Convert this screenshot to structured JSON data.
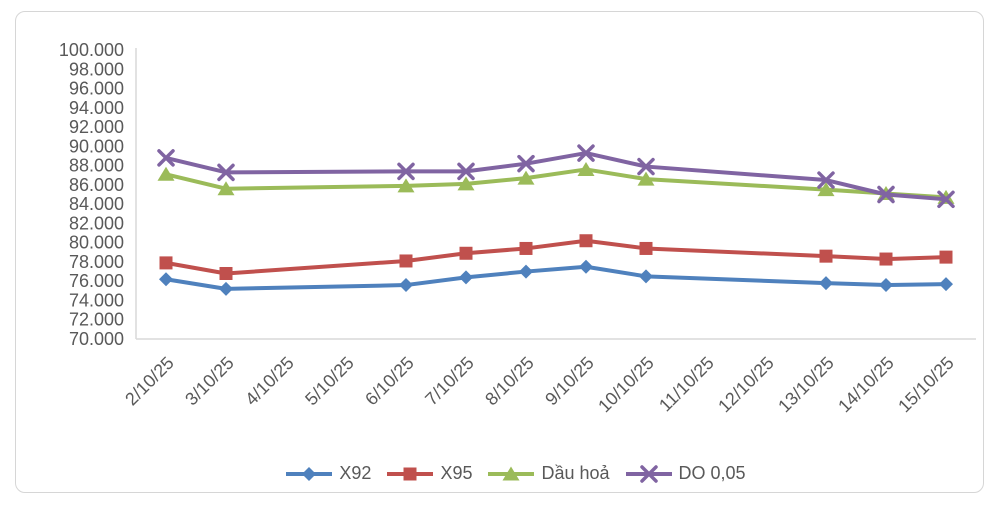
{
  "chart_data": {
    "type": "line",
    "title": "",
    "xlabel": "",
    "ylabel": "",
    "grid": false,
    "legend_position": "bottom",
    "axis_color": "#D9D9D9",
    "text_color": "#595959",
    "ylim": [
      70000,
      100000
    ],
    "ytick_step": 2000,
    "ytick_labels": [
      "100.000",
      "98.000",
      "96.000",
      "94.000",
      "92.000",
      "90.000",
      "88.000",
      "86.000",
      "84.000",
      "82.000",
      "80.000",
      "78.000",
      "76.000",
      "74.000",
      "72.000",
      "70.000"
    ],
    "categories": [
      "2/10/25",
      "3/10/25",
      "4/10/25",
      "5/10/25",
      "6/10/25",
      "7/10/25",
      "8/10/25",
      "9/10/25",
      "10/10/25",
      "11/10/25",
      "12/10/25",
      "13/10/25",
      "14/10/25",
      "15/10/25"
    ],
    "series": [
      {
        "name": "X92",
        "color": "#4F81BD",
        "marker": "diamond",
        "values": [
          76200,
          75200,
          null,
          null,
          75600,
          76400,
          77000,
          77500,
          76500,
          null,
          null,
          75800,
          75600,
          75700
        ]
      },
      {
        "name": "X95",
        "color": "#C0504D",
        "marker": "square",
        "values": [
          77900,
          76800,
          null,
          null,
          78100,
          78900,
          79400,
          80200,
          79400,
          null,
          null,
          78600,
          78300,
          78500
        ]
      },
      {
        "name": "Dầu hoả",
        "color": "#9BBB59",
        "marker": "triangle",
        "values": [
          87100,
          85600,
          null,
          null,
          85900,
          86100,
          86700,
          87600,
          86600,
          null,
          null,
          85500,
          85100,
          84700
        ]
      },
      {
        "name": "DO 0,05",
        "color": "#8064A2",
        "marker": "x",
        "values": [
          88800,
          87300,
          null,
          null,
          87400,
          87400,
          88200,
          89300,
          87900,
          null,
          null,
          86500,
          85000,
          84500
        ]
      }
    ],
    "legend": [
      "X92",
      "X95",
      "Dầu hoả",
      "DO 0,05"
    ]
  }
}
